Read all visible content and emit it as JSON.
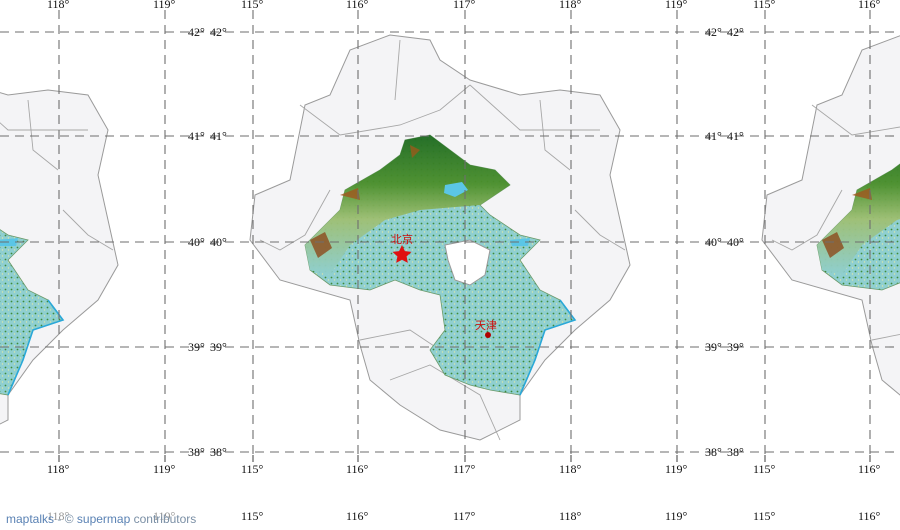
{
  "map": {
    "longitude_labels": [
      "115°",
      "116°",
      "117°",
      "118°",
      "119°"
    ],
    "latitude_labels": [
      "38°",
      "39°",
      "40°",
      "41°",
      "42°"
    ],
    "cities": [
      {
        "name": "北京",
        "marker": "star-icon",
        "color": "#e01010"
      },
      {
        "name": "天津",
        "marker": "dot-icon",
        "color": "#b00000"
      }
    ],
    "colors": {
      "plain": "#8fcfd0",
      "forest": "#2f7d2a",
      "mountain": "#8c4a1c",
      "water": "#5bc6e6",
      "boundary": "#9a9a9a"
    }
  },
  "attribution": {
    "lib": "maptalks",
    "separator": "© ",
    "source": "supermap",
    "suffix": " contributors"
  }
}
